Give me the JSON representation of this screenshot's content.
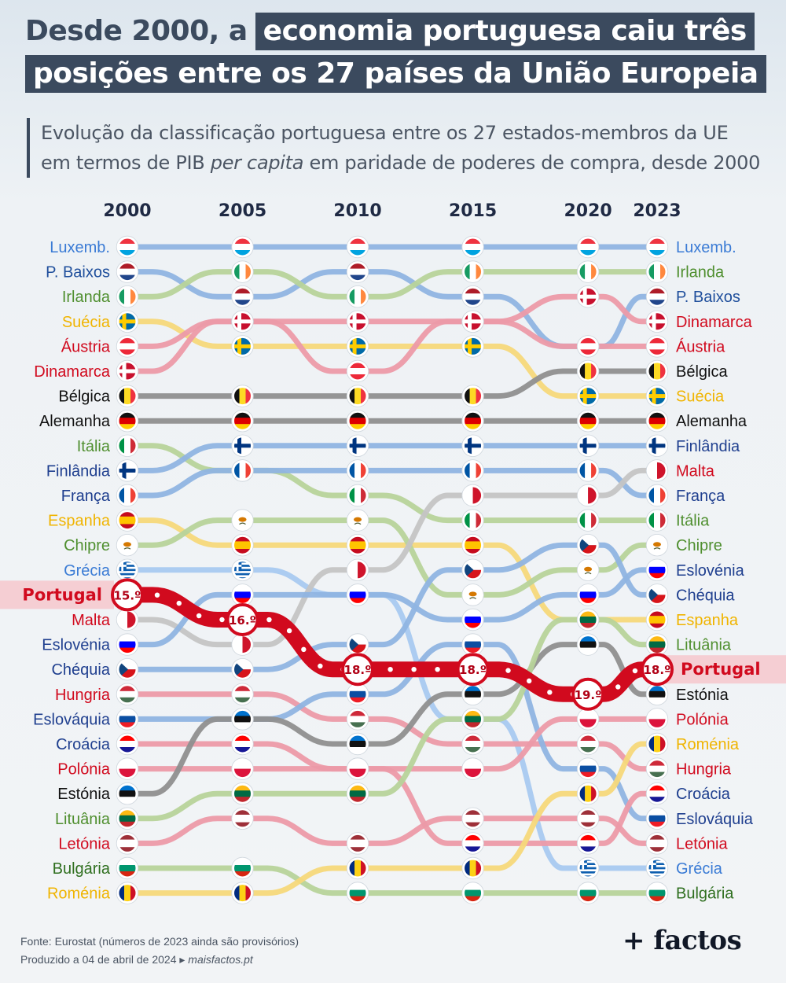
{
  "title": {
    "part1": "Desde 2000, a",
    "part2": "economia portuguesa caiu três",
    "part3": "posições entre os 27 países da União Europeia"
  },
  "subtitle": {
    "line1": "Evolução da classificação portuguesa entre os 27 estados-membros da UE",
    "line2_a": "em termos de PIB ",
    "line2_italic": "per capita",
    "line2_b": " em paridade de poderes de compra, desde 2000"
  },
  "footer": {
    "source": "Fonte: Eurostat (números de 2023 ainda são provisórios)",
    "produced": "Produzido a 04 de abril de 2024 ▸ ",
    "site": "maisfactos.pt"
  },
  "brand": "+ factos",
  "chart_data": {
    "type": "line",
    "subtype": "bump",
    "title": "Desde 2000, a economia portuguesa caiu três posições entre os 27 países da União Europeia",
    "x": [
      2000,
      2005,
      2010,
      2015,
      2020,
      2023
    ],
    "ylabel": "",
    "y_direction": "rank 1 at top",
    "ylim": [
      1,
      27
    ],
    "left_labels": [
      "Luxemb.",
      "P. Baixos",
      "Irlanda",
      "Suécia",
      "Áustria",
      "Dinamarca",
      "Bélgica",
      "Alemanha",
      "Itália",
      "Finlândia",
      "França",
      "Espanha",
      "Chipre",
      "Grécia",
      "Portugal",
      "Malta",
      "Eslovénia",
      "Chéquia",
      "Hungria",
      "Eslováquia",
      "Croácia",
      "Polónia",
      "Estónia",
      "Lituânia",
      "Letónia",
      "Bulgária",
      "Roménia"
    ],
    "right_labels": [
      "Luxemb.",
      "Irlanda",
      "P. Baixos",
      "Dinamarca",
      "Áustria",
      "Bélgica",
      "Suécia",
      "Alemanha",
      "Finlândia",
      "Malta",
      "França",
      "Itália",
      "Chipre",
      "Eslovénia",
      "Chéquia",
      "Espanha",
      "Lituânia",
      "Portugal",
      "Estónia",
      "Polónia",
      "Roménia",
      "Hungria",
      "Croácia",
      "Eslováquia",
      "Letónia",
      "Grécia",
      "Bulgária"
    ],
    "highlight": "Portugal",
    "highlight_labels": [
      "15.º",
      "16.º",
      "18.º",
      "18.º",
      "19.º",
      "18.º"
    ],
    "series": [
      {
        "name": "Luxemb.",
        "values": [
          1,
          1,
          1,
          1,
          1,
          1
        ]
      },
      {
        "name": "P. Baixos",
        "values": [
          2,
          3,
          2,
          3,
          5,
          3
        ]
      },
      {
        "name": "Irlanda",
        "values": [
          3,
          2,
          3,
          2,
          2,
          2
        ]
      },
      {
        "name": "Suécia",
        "values": [
          4,
          5,
          5,
          5,
          7,
          7
        ]
      },
      {
        "name": "Áustria",
        "values": [
          5,
          4,
          6,
          4,
          5,
          5
        ]
      },
      {
        "name": "Dinamarca",
        "values": [
          6,
          4,
          4,
          4,
          3,
          4
        ]
      },
      {
        "name": "Bélgica",
        "values": [
          7,
          7,
          7,
          7,
          6,
          6
        ]
      },
      {
        "name": "Alemanha",
        "values": [
          8,
          8,
          8,
          8,
          8,
          8
        ]
      },
      {
        "name": "Itália",
        "values": [
          9,
          10,
          11,
          12,
          12,
          12
        ]
      },
      {
        "name": "Finlândia",
        "values": [
          10,
          9,
          9,
          9,
          9,
          9
        ]
      },
      {
        "name": "França",
        "values": [
          11,
          10,
          10,
          10,
          10,
          11
        ]
      },
      {
        "name": "Espanha",
        "values": [
          12,
          13,
          13,
          13,
          16,
          16
        ]
      },
      {
        "name": "Chipre",
        "values": [
          13,
          12,
          12,
          15,
          14,
          13
        ]
      },
      {
        "name": "Grécia",
        "values": [
          14,
          14,
          15,
          20,
          26,
          26
        ]
      },
      {
        "name": "Portugal",
        "values": [
          15,
          16,
          18,
          18,
          19,
          18
        ]
      },
      {
        "name": "Malta",
        "values": [
          16,
          17,
          14,
          11,
          11,
          10
        ]
      },
      {
        "name": "Eslovénia",
        "values": [
          17,
          15,
          15,
          16,
          15,
          14
        ]
      },
      {
        "name": "Chéquia",
        "values": [
          18,
          18,
          17,
          14,
          13,
          15
        ]
      },
      {
        "name": "Hungria",
        "values": [
          19,
          19,
          20,
          21,
          21,
          22
        ]
      },
      {
        "name": "Eslováquia",
        "values": [
          20,
          20,
          19,
          17,
          22,
          24
        ]
      },
      {
        "name": "Croácia",
        "values": [
          21,
          21,
          22,
          25,
          25,
          23
        ]
      },
      {
        "name": "Polónia",
        "values": [
          22,
          22,
          22,
          22,
          20,
          20
        ]
      },
      {
        "name": "Estónia",
        "values": [
          23,
          20,
          21,
          19,
          17,
          19
        ]
      },
      {
        "name": "Lituânia",
        "values": [
          24,
          23,
          23,
          20,
          16,
          17
        ]
      },
      {
        "name": "Letónia",
        "values": [
          25,
          24,
          25,
          24,
          24,
          25
        ]
      },
      {
        "name": "Bulgária",
        "values": [
          26,
          26,
          27,
          27,
          27,
          27
        ]
      },
      {
        "name": "Roménia",
        "values": [
          27,
          27,
          26,
          26,
          23,
          21
        ]
      }
    ],
    "colors": {
      "Luxemb.": "#8fb4e2",
      "P. Baixos": "#8fb4e2",
      "Irlanda": "#b7d39a",
      "Suécia": "#f6d87a",
      "Áustria": "#ec9aa8",
      "Dinamarca": "#ec9aa8",
      "Bélgica": "#8f8f8f",
      "Alemanha": "#8f8f8f",
      "Itália": "#b7d39a",
      "Finlândia": "#8fb4e2",
      "França": "#8fb4e2",
      "Espanha": "#f6d87a",
      "Chipre": "#b7d39a",
      "Grécia": "#a8c9f0",
      "Portugal": "#d10a1e",
      "Malta": "#c4c4c4",
      "Eslovénia": "#8fb4e2",
      "Chéquia": "#8fb4e2",
      "Hungria": "#ec9aa8",
      "Eslováquia": "#8fb4e2",
      "Croácia": "#ec9aa8",
      "Polónia": "#ec9aa8",
      "Estónia": "#8f8f8f",
      "Lituânia": "#b7d39a",
      "Letónia": "#ec9aa8",
      "Bulgária": "#b7d39a",
      "Roménia": "#f6d87a"
    },
    "label_colors": {
      "Luxemb.": "#3a7bd5",
      "P. Baixos": "#1f4f9c",
      "Irlanda": "#4f8f2f",
      "Suécia": "#f0b400",
      "Áustria": "#d10a1e",
      "Dinamarca": "#d10a1e",
      "Bélgica": "#111111",
      "Alemanha": "#111111",
      "Itália": "#4f8f2f",
      "Finlândia": "#1f3f8f",
      "França": "#1f3f8f",
      "Espanha": "#f0b400",
      "Chipre": "#4f8f2f",
      "Grécia": "#3a7bd5",
      "Portugal": "#d10a1e",
      "Malta": "#d10a1e",
      "Eslovénia": "#1f3f8f",
      "Chéquia": "#1f3f8f",
      "Hungria": "#d10a1e",
      "Eslováquia": "#1f3f8f",
      "Croácia": "#1f3f8f",
      "Polónia": "#d10a1e",
      "Estónia": "#111111",
      "Lituânia": "#4f8f2f",
      "Letónia": "#d10a1e",
      "Bulgária": "#2f6f1f",
      "Roménia": "#f0b400"
    },
    "flag_icons": {
      "Luxemb.": "luxembourg-flag-icon",
      "P. Baixos": "netherlands-flag-icon",
      "Irlanda": "ireland-flag-icon",
      "Suécia": "sweden-flag-icon",
      "Áustria": "austria-flag-icon",
      "Dinamarca": "denmark-flag-icon",
      "Bélgica": "belgium-flag-icon",
      "Alemanha": "germany-flag-icon",
      "Itália": "italy-flag-icon",
      "Finlândia": "finland-flag-icon",
      "França": "france-flag-icon",
      "Espanha": "spain-flag-icon",
      "Chipre": "cyprus-flag-icon",
      "Grécia": "greece-flag-icon",
      "Portugal": "portugal-flag-icon",
      "Malta": "malta-flag-icon",
      "Eslovénia": "slovenia-flag-icon",
      "Chéquia": "czechia-flag-icon",
      "Hungria": "hungary-flag-icon",
      "Eslováquia": "slovakia-flag-icon",
      "Croácia": "croatia-flag-icon",
      "Polónia": "poland-flag-icon",
      "Estónia": "estonia-flag-icon",
      "Lituânia": "lithuania-flag-icon",
      "Letónia": "latvia-flag-icon",
      "Bulgária": "bulgaria-flag-icon",
      "Roménia": "romania-flag-icon"
    }
  }
}
